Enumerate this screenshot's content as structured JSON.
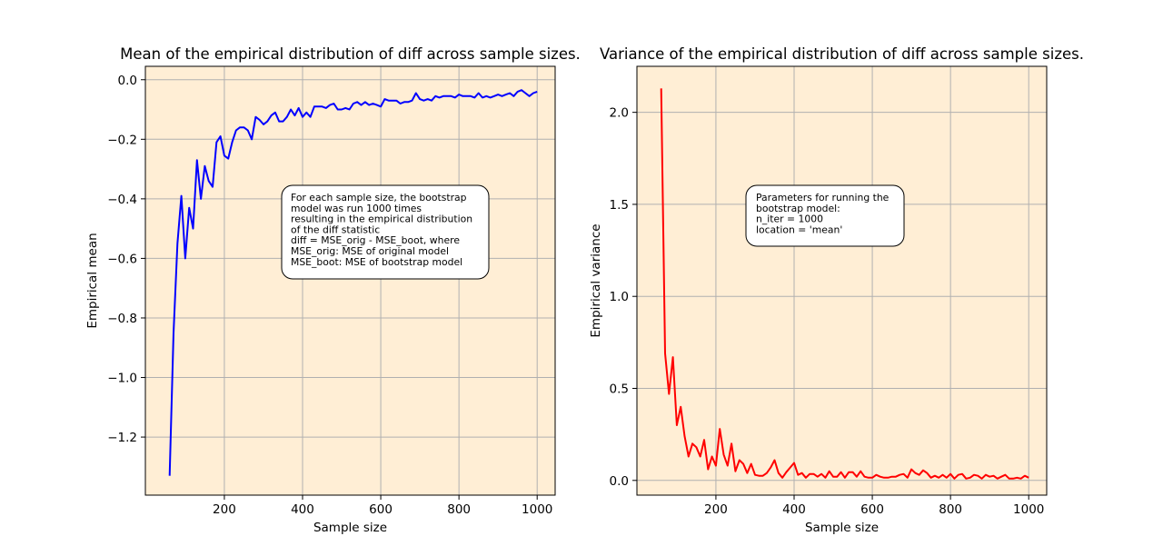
{
  "chart_data": [
    {
      "type": "line",
      "title": "Mean of the empirical distribution of diff across sample sizes.",
      "xlabel": "Sample size",
      "ylabel": "Empirical mean",
      "xlim": [
        -2,
        1046
      ],
      "ylim": [
        -1.395,
        0.045
      ],
      "xticks": [
        200,
        400,
        600,
        800,
        1000
      ],
      "yticks": [
        0.0,
        -0.2,
        -0.4,
        -0.6,
        -0.8,
        -1.0,
        -1.2
      ],
      "ytick_labels": [
        "0.0",
        "−0.2",
        "−0.4",
        "−0.6",
        "−0.8",
        "−1.0",
        "−1.2"
      ],
      "grid": true,
      "background": "#ffeed5",
      "series": [
        {
          "color": "#0000ff",
          "x": [
            60,
            70,
            80,
            90,
            100,
            110,
            120,
            130,
            140,
            150,
            160,
            170,
            180,
            190,
            200,
            210,
            220,
            230,
            240,
            250,
            260,
            270,
            280,
            290,
            300,
            310,
            320,
            330,
            340,
            350,
            360,
            370,
            380,
            390,
            400,
            410,
            420,
            430,
            440,
            450,
            460,
            470,
            480,
            490,
            500,
            510,
            520,
            530,
            540,
            550,
            560,
            570,
            580,
            590,
            600,
            610,
            620,
            630,
            640,
            650,
            660,
            670,
            680,
            690,
            700,
            710,
            720,
            730,
            740,
            750,
            760,
            770,
            780,
            790,
            800,
            810,
            820,
            830,
            840,
            850,
            860,
            870,
            880,
            890,
            900,
            910,
            920,
            930,
            940,
            950,
            960,
            970,
            980,
            990,
            1000
          ],
          "values": [
            -1.33,
            -0.85,
            -0.55,
            -0.39,
            -0.6,
            -0.43,
            -0.5,
            -0.27,
            -0.4,
            -0.29,
            -0.34,
            -0.36,
            -0.21,
            -0.19,
            -0.255,
            -0.265,
            -0.21,
            -0.17,
            -0.16,
            -0.16,
            -0.17,
            -0.2,
            -0.125,
            -0.135,
            -0.15,
            -0.14,
            -0.12,
            -0.11,
            -0.14,
            -0.14,
            -0.125,
            -0.1,
            -0.12,
            -0.095,
            -0.125,
            -0.11,
            -0.125,
            -0.09,
            -0.09,
            -0.09,
            -0.095,
            -0.085,
            -0.08,
            -0.1,
            -0.1,
            -0.095,
            -0.1,
            -0.08,
            -0.075,
            -0.085,
            -0.075,
            -0.085,
            -0.08,
            -0.085,
            -0.09,
            -0.065,
            -0.07,
            -0.07,
            -0.07,
            -0.08,
            -0.075,
            -0.075,
            -0.07,
            -0.045,
            -0.065,
            -0.07,
            -0.065,
            -0.07,
            -0.055,
            -0.06,
            -0.055,
            -0.055,
            -0.055,
            -0.06,
            -0.05,
            -0.055,
            -0.055,
            -0.055,
            -0.06,
            -0.045,
            -0.06,
            -0.055,
            -0.06,
            -0.055,
            -0.05,
            -0.055,
            -0.05,
            -0.045,
            -0.055,
            -0.04,
            -0.035,
            -0.045,
            -0.055,
            -0.045,
            -0.04
          ]
        }
      ],
      "annotation": [
        "For each sample size, the bootstrap",
        "model was run 1000 times",
        "resulting in the empirical distribution",
        "of the diff statistic",
        "diff = MSE_orig - MSE_boot, where",
        "MSE_orig: MSE of original model",
        "MSE_boot: MSE of bootstrap model"
      ]
    },
    {
      "type": "line",
      "title": "Variance of the empirical distribution of diff across sample sizes.",
      "xlabel": "Sample size",
      "ylabel": "Empirical variance",
      "xlim": [
        -2,
        1046
      ],
      "ylim": [
        -0.08,
        2.25
      ],
      "xticks": [
        200,
        400,
        600,
        800,
        1000
      ],
      "yticks": [
        0.0,
        0.5,
        1.0,
        1.5,
        2.0
      ],
      "ytick_labels": [
        "0.0",
        "0.5",
        "1.0",
        "1.5",
        "2.0"
      ],
      "grid": true,
      "background": "#ffeed5",
      "series": [
        {
          "color": "#ff0000",
          "x": [
            60,
            70,
            80,
            90,
            100,
            110,
            120,
            130,
            140,
            150,
            160,
            170,
            180,
            190,
            200,
            210,
            220,
            230,
            240,
            250,
            260,
            270,
            280,
            290,
            300,
            310,
            320,
            330,
            340,
            350,
            360,
            370,
            380,
            390,
            400,
            410,
            420,
            430,
            440,
            450,
            460,
            470,
            480,
            490,
            500,
            510,
            520,
            530,
            540,
            550,
            560,
            570,
            580,
            590,
            600,
            610,
            620,
            630,
            640,
            650,
            660,
            670,
            680,
            690,
            700,
            710,
            720,
            730,
            740,
            750,
            760,
            770,
            780,
            790,
            800,
            810,
            820,
            830,
            840,
            850,
            860,
            870,
            880,
            890,
            900,
            910,
            920,
            930,
            940,
            950,
            960,
            970,
            980,
            990,
            1000
          ],
          "values": [
            2.13,
            0.69,
            0.47,
            0.67,
            0.3,
            0.4,
            0.24,
            0.13,
            0.2,
            0.18,
            0.13,
            0.22,
            0.06,
            0.13,
            0.08,
            0.28,
            0.14,
            0.08,
            0.2,
            0.05,
            0.11,
            0.09,
            0.04,
            0.09,
            0.03,
            0.025,
            0.025,
            0.04,
            0.07,
            0.11,
            0.04,
            0.015,
            0.045,
            0.07,
            0.095,
            0.03,
            0.04,
            0.015,
            0.035,
            0.035,
            0.02,
            0.035,
            0.015,
            0.05,
            0.02,
            0.02,
            0.045,
            0.015,
            0.045,
            0.045,
            0.02,
            0.05,
            0.02,
            0.015,
            0.015,
            0.03,
            0.02,
            0.015,
            0.015,
            0.02,
            0.02,
            0.03,
            0.035,
            0.015,
            0.06,
            0.04,
            0.03,
            0.055,
            0.04,
            0.015,
            0.025,
            0.015,
            0.03,
            0.015,
            0.035,
            0.01,
            0.03,
            0.035,
            0.01,
            0.015,
            0.03,
            0.025,
            0.01,
            0.03,
            0.02,
            0.025,
            0.01,
            0.02,
            0.03,
            0.01,
            0.01,
            0.015,
            0.01,
            0.025,
            0.015
          ]
        }
      ],
      "annotation": [
        "Parameters for running the",
        "bootstrap model:",
        "n_iter = 1000",
        "location = 'mean'"
      ]
    }
  ]
}
